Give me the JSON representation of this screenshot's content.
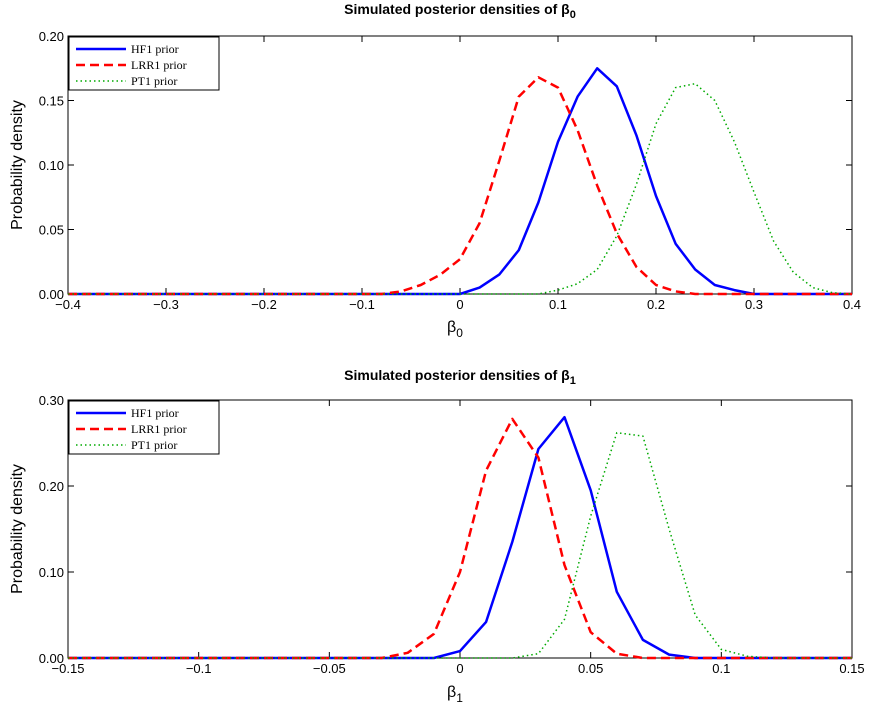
{
  "chart_data": [
    {
      "type": "line",
      "title": "Simulated posterior densities of β0",
      "title_main": "Simulated posterior densities of β",
      "title_sub": "0",
      "xlabel_main": "β",
      "xlabel_sub": "0",
      "ylabel": "Probability density",
      "xlim": [
        -0.4,
        0.4
      ],
      "ylim": [
        0,
        0.2
      ],
      "xticks": [
        -0.4,
        -0.3,
        -0.2,
        -0.1,
        0,
        0.1,
        0.2,
        0.3,
        0.4
      ],
      "xtick_labels": [
        "−0.4",
        "−0.3",
        "−0.2",
        "−0.1",
        "0",
        "0.1",
        "0.2",
        "0.3",
        "0.4"
      ],
      "yticks": [
        0,
        0.05,
        0.1,
        0.15,
        0.2
      ],
      "ytick_labels": [
        "0.00",
        "0.05",
        "0.10",
        "0.15",
        "0.20"
      ],
      "legend_position": "top-left",
      "grid": false,
      "series": [
        {
          "name": "HF1 prior",
          "color": "#0000ff",
          "style": "solid",
          "x": [
            -0.4,
            0.0,
            0.02,
            0.04,
            0.06,
            0.08,
            0.1,
            0.12,
            0.14,
            0.16,
            0.18,
            0.2,
            0.22,
            0.24,
            0.26,
            0.28,
            0.3,
            0.4
          ],
          "y": [
            0,
            0,
            0.005,
            0.015,
            0.034,
            0.071,
            0.118,
            0.153,
            0.175,
            0.161,
            0.123,
            0.076,
            0.039,
            0.019,
            0.007,
            0.003,
            0,
            0
          ]
        },
        {
          "name": "LRR1 prior",
          "color": "#ff0000",
          "style": "dashed",
          "x": [
            -0.4,
            -0.08,
            -0.06,
            -0.04,
            -0.02,
            0.0,
            0.02,
            0.04,
            0.06,
            0.08,
            0.1,
            0.12,
            0.14,
            0.16,
            0.18,
            0.2,
            0.22,
            0.24,
            0.4
          ],
          "y": [
            0,
            0,
            0.002,
            0.007,
            0.015,
            0.027,
            0.055,
            0.103,
            0.153,
            0.168,
            0.16,
            0.127,
            0.084,
            0.047,
            0.021,
            0.007,
            0.002,
            0,
            0
          ]
        },
        {
          "name": "PT1 prior",
          "color": "#00aa00",
          "style": "dotted",
          "x": [
            -0.4,
            0.08,
            0.1,
            0.12,
            0.14,
            0.16,
            0.18,
            0.2,
            0.22,
            0.24,
            0.26,
            0.28,
            0.3,
            0.32,
            0.34,
            0.36,
            0.38,
            0.4
          ],
          "y": [
            0,
            0,
            0.003,
            0.008,
            0.019,
            0.045,
            0.085,
            0.132,
            0.16,
            0.163,
            0.15,
            0.118,
            0.079,
            0.041,
            0.017,
            0.005,
            0.001,
            0
          ]
        }
      ]
    },
    {
      "type": "line",
      "title": "Simulated posterior densities of β1",
      "title_main": "Simulated posterior densities of β",
      "title_sub": "1",
      "xlabel_main": "β",
      "xlabel_sub": "1",
      "ylabel": "Probability density",
      "xlim": [
        -0.15,
        0.15
      ],
      "ylim": [
        0,
        0.3
      ],
      "xticks": [
        -0.15,
        -0.1,
        -0.05,
        0,
        0.05,
        0.1,
        0.15
      ],
      "xtick_labels": [
        "−0.15",
        "−0.1",
        "−0.05",
        "0",
        "0.05",
        "0.1",
        "0.15"
      ],
      "yticks": [
        0,
        0.1,
        0.2,
        0.3
      ],
      "ytick_labels": [
        "0.00",
        "0.10",
        "0.20",
        "0.30"
      ],
      "legend_position": "top-left",
      "grid": false,
      "series": [
        {
          "name": "HF1 prior",
          "color": "#0000ff",
          "style": "solid",
          "x": [
            -0.15,
            -0.01,
            0.0,
            0.01,
            0.02,
            0.03,
            0.04,
            0.05,
            0.06,
            0.07,
            0.08,
            0.09,
            0.15
          ],
          "y": [
            0,
            0,
            0.008,
            0.042,
            0.135,
            0.243,
            0.28,
            0.195,
            0.077,
            0.021,
            0.004,
            0,
            0
          ]
        },
        {
          "name": "LRR1 prior",
          "color": "#ff0000",
          "style": "dashed",
          "x": [
            -0.15,
            -0.03,
            -0.02,
            -0.01,
            0.0,
            0.01,
            0.02,
            0.03,
            0.04,
            0.05,
            0.06,
            0.07,
            0.15
          ],
          "y": [
            0,
            0,
            0.006,
            0.028,
            0.1,
            0.218,
            0.278,
            0.233,
            0.108,
            0.03,
            0.005,
            0,
            0
          ]
        },
        {
          "name": "PT1 prior",
          "color": "#00aa00",
          "style": "dotted",
          "x": [
            -0.15,
            0.02,
            0.03,
            0.04,
            0.05,
            0.06,
            0.07,
            0.08,
            0.09,
            0.1,
            0.11,
            0.12,
            0.15
          ],
          "y": [
            0,
            0,
            0.005,
            0.045,
            0.165,
            0.262,
            0.258,
            0.15,
            0.05,
            0.01,
            0.002,
            0,
            0
          ]
        }
      ]
    }
  ]
}
